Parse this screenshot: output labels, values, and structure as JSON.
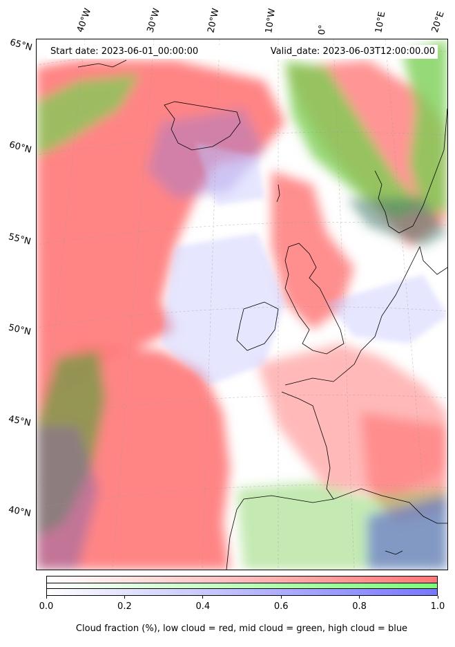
{
  "header": {
    "start_date": "Start date: 2023-06-01_00:00:00",
    "valid_date": "Valid_date: 2023-06-03T12:00:00.00"
  },
  "longitude_labels": [
    "40°W",
    "30°W",
    "20°W",
    "10°W",
    "0°",
    "10°E",
    "20°E"
  ],
  "latitude_labels": [
    "65°N",
    "60°N",
    "55°N",
    "50°N",
    "45°N",
    "40°N"
  ],
  "colorbar": {
    "ticks": [
      "0.0",
      "0.2",
      "0.4",
      "0.6",
      "0.8",
      "1.0"
    ],
    "tick_values": [
      0.0,
      0.2,
      0.4,
      0.6,
      0.8,
      1.0
    ],
    "range": [
      0.0,
      1.0
    ],
    "caption": "Cloud fraction (%), low cloud = red, mid cloud = green, high cloud = blue",
    "colors": {
      "low": "#ff7777",
      "mid": "#77ff77",
      "high": "#7777ff"
    }
  },
  "map": {
    "projection": "lambert-conformal",
    "coastlines": true,
    "graticule": "dashed-grey",
    "colors": {
      "low_cloud": "#ff7b7b",
      "mid_cloud": "#7ccf55",
      "high_cloud": "#c8c8ff",
      "clear": "#ffffff"
    }
  }
}
